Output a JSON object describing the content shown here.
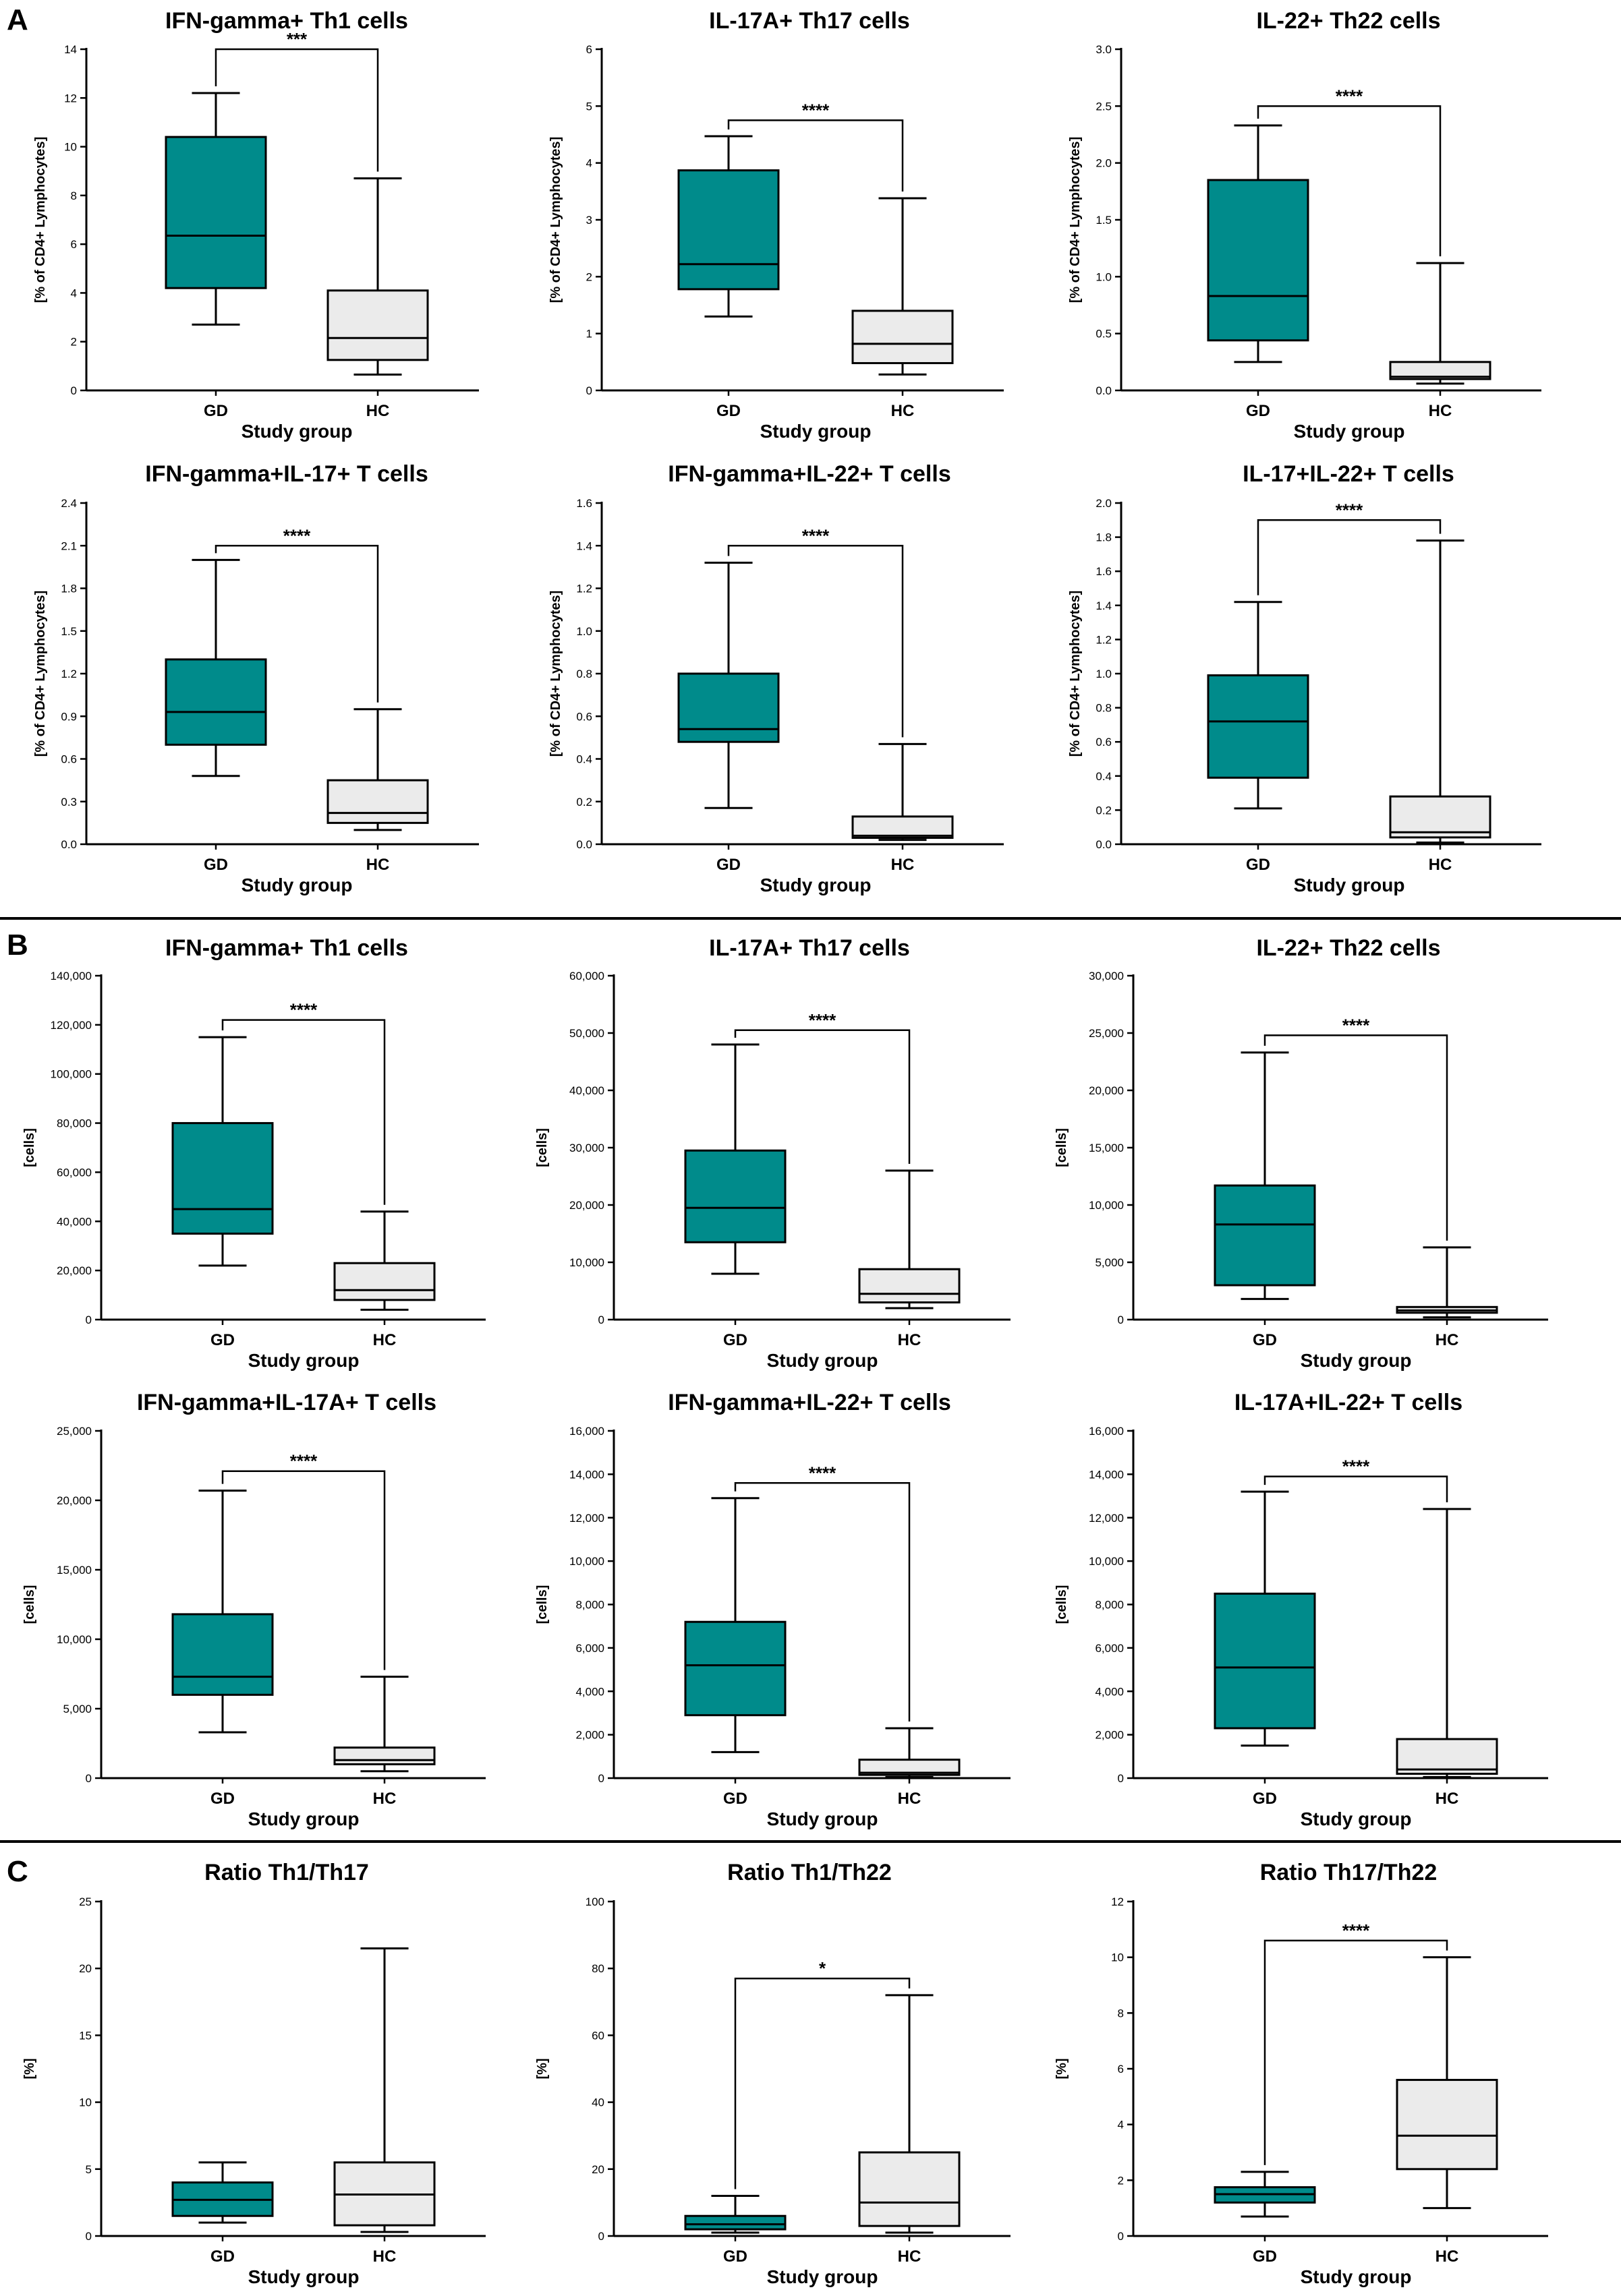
{
  "figure": {
    "panels": [
      "A",
      "B",
      "C"
    ],
    "colors": {
      "gd_fill": "#008b8b",
      "hc_fill": "#ebebeb",
      "stroke": "#000000"
    }
  },
  "chart_data": [
    {
      "type": "box",
      "section": "A",
      "title": "IFN-gamma+ Th1 cells",
      "xlabel": "Study group",
      "ylabel": "[% of CD4+ Lymphocytes]",
      "categories": [
        "GD",
        "HC"
      ],
      "ylim": [
        0,
        14
      ],
      "ticks": [
        0,
        2,
        4,
        6,
        8,
        10,
        12,
        14
      ],
      "tick_labels": [
        "0",
        "2",
        "4",
        "6",
        "8",
        "10",
        "12",
        "14"
      ],
      "boxes": [
        {
          "min": 2.7,
          "q1": 4.2,
          "median": 6.35,
          "q3": 10.4,
          "max": 12.2
        },
        {
          "min": 0.65,
          "q1": 1.25,
          "median": 2.15,
          "q3": 4.1,
          "max": 8.7
        }
      ],
      "significance": "***",
      "bracket_y": 14.0
    },
    {
      "type": "box",
      "section": "A",
      "title": "IL-17A+ Th17 cells",
      "xlabel": "Study group",
      "ylabel": "[% of CD4+ Lymphocytes]",
      "categories": [
        "GD",
        "HC"
      ],
      "ylim": [
        0,
        6
      ],
      "ticks": [
        0,
        1,
        2,
        3,
        4,
        5,
        6
      ],
      "tick_labels": [
        "0",
        "1",
        "2",
        "3",
        "4",
        "5",
        "6"
      ],
      "boxes": [
        {
          "min": 1.3,
          "q1": 1.78,
          "median": 2.22,
          "q3": 3.87,
          "max": 4.47
        },
        {
          "min": 0.28,
          "q1": 0.48,
          "median": 0.82,
          "q3": 1.4,
          "max": 3.38
        }
      ],
      "significance": "****",
      "bracket_y": 4.75
    },
    {
      "type": "box",
      "section": "A",
      "title": "IL-22+ Th22 cells",
      "xlabel": "Study group",
      "ylabel": "[% of CD4+ Lymphocytes]",
      "categories": [
        "GD",
        "HC"
      ],
      "ylim": [
        0,
        3
      ],
      "ticks": [
        0,
        0.5,
        1,
        1.5,
        2,
        2.5,
        3
      ],
      "tick_labels": [
        "0.0",
        "0.5",
        "1.0",
        "1.5",
        "2.0",
        "2.5",
        "3.0"
      ],
      "boxes": [
        {
          "min": 0.25,
          "q1": 0.44,
          "median": 0.83,
          "q3": 1.85,
          "max": 2.33
        },
        {
          "min": 0.06,
          "q1": 0.1,
          "median": 0.12,
          "q3": 0.25,
          "max": 1.12
        }
      ],
      "significance": "****",
      "bracket_y": 2.5
    },
    {
      "type": "box",
      "section": "A",
      "title": "IFN-gamma+IL-17+ T cells",
      "xlabel": "Study group",
      "ylabel": "[% of CD4+ Lymphocytes]",
      "categories": [
        "GD",
        "HC"
      ],
      "ylim": [
        0,
        2.4
      ],
      "ticks": [
        0,
        0.3,
        0.6,
        0.9,
        1.2,
        1.5,
        1.8,
        2.1,
        2.4
      ],
      "tick_labels": [
        "0.0",
        "0.3",
        "0.6",
        "0.9",
        "1.2",
        "1.5",
        "1.8",
        "2.1",
        "2.4"
      ],
      "boxes": [
        {
          "min": 0.48,
          "q1": 0.7,
          "median": 0.93,
          "q3": 1.3,
          "max": 2.0
        },
        {
          "min": 0.1,
          "q1": 0.15,
          "median": 0.22,
          "q3": 0.45,
          "max": 0.95
        }
      ],
      "significance": "****",
      "bracket_y": 2.1
    },
    {
      "type": "box",
      "section": "A",
      "title": "IFN-gamma+IL-22+ T cells",
      "xlabel": "Study group",
      "ylabel": "[% of CD4+ Lymphocytes]",
      "categories": [
        "GD",
        "HC"
      ],
      "ylim": [
        0,
        1.6
      ],
      "ticks": [
        0,
        0.2,
        0.4,
        0.6,
        0.8,
        1.0,
        1.2,
        1.4,
        1.6
      ],
      "tick_labels": [
        "0.0",
        "0.2",
        "0.4",
        "0.6",
        "0.8",
        "1.0",
        "1.2",
        "1.4",
        "1.6"
      ],
      "boxes": [
        {
          "min": 0.17,
          "q1": 0.48,
          "median": 0.54,
          "q3": 0.8,
          "max": 1.32
        },
        {
          "min": 0.02,
          "q1": 0.03,
          "median": 0.04,
          "q3": 0.13,
          "max": 0.47
        }
      ],
      "significance": "****",
      "bracket_y": 1.4
    },
    {
      "type": "box",
      "section": "A",
      "title": "IL-17+IL-22+ T cells",
      "xlabel": "Study group",
      "ylabel": "[% of CD4+ Lymphocytes]",
      "categories": [
        "GD",
        "HC"
      ],
      "ylim": [
        0,
        2.0
      ],
      "ticks": [
        0,
        0.2,
        0.4,
        0.6,
        0.8,
        1.0,
        1.2,
        1.4,
        1.6,
        1.8,
        2.0
      ],
      "tick_labels": [
        "0.0",
        "0.2",
        "0.4",
        "0.6",
        "0.8",
        "1.0",
        "1.2",
        "1.4",
        "1.6",
        "1.8",
        "2.0"
      ],
      "boxes": [
        {
          "min": 0.21,
          "q1": 0.39,
          "median": 0.72,
          "q3": 0.99,
          "max": 1.42
        },
        {
          "min": 0.01,
          "q1": 0.04,
          "median": 0.07,
          "q3": 0.28,
          "max": 1.78
        }
      ],
      "significance": "****",
      "bracket_y": 1.9
    },
    {
      "type": "box",
      "section": "B",
      "title": "IFN-gamma+ Th1 cells",
      "xlabel": "Study group",
      "ylabel": "[cells]",
      "categories": [
        "GD",
        "HC"
      ],
      "ylim": [
        0,
        140000
      ],
      "ticks": [
        0,
        20000,
        40000,
        60000,
        80000,
        100000,
        120000,
        140000
      ],
      "tick_labels": [
        "0",
        "20,000",
        "40,000",
        "60,000",
        "80,000",
        "100,000",
        "120,000",
        "140,000"
      ],
      "boxes": [
        {
          "min": 22000,
          "q1": 35000,
          "median": 45000,
          "q3": 80000,
          "max": 115000
        },
        {
          "min": 4000,
          "q1": 8000,
          "median": 12000,
          "q3": 23000,
          "max": 44000
        }
      ],
      "significance": "****",
      "bracket_y": 122000
    },
    {
      "type": "box",
      "section": "B",
      "title": "IL-17A+ Th17 cells",
      "xlabel": "Study group",
      "ylabel": "[cells]",
      "categories": [
        "GD",
        "HC"
      ],
      "ylim": [
        0,
        60000
      ],
      "ticks": [
        0,
        10000,
        20000,
        30000,
        40000,
        50000,
        60000
      ],
      "tick_labels": [
        "0",
        "10,000",
        "20,000",
        "30,000",
        "40,000",
        "50,000",
        "60,000"
      ],
      "boxes": [
        {
          "min": 8000,
          "q1": 13500,
          "median": 19500,
          "q3": 29500,
          "max": 48000
        },
        {
          "min": 2000,
          "q1": 3000,
          "median": 4500,
          "q3": 8800,
          "max": 26000
        }
      ],
      "significance": "****",
      "bracket_y": 50500
    },
    {
      "type": "box",
      "section": "B",
      "title": "IL-22+ Th22 cells",
      "xlabel": "Study group",
      "ylabel": "[cells]",
      "categories": [
        "GD",
        "HC"
      ],
      "ylim": [
        0,
        30000
      ],
      "ticks": [
        0,
        5000,
        10000,
        15000,
        20000,
        25000,
        30000
      ],
      "tick_labels": [
        "0",
        "5,000",
        "10,000",
        "15,000",
        "20,000",
        "25,000",
        "30,000"
      ],
      "boxes": [
        {
          "min": 1800,
          "q1": 3000,
          "median": 8300,
          "q3": 11700,
          "max": 23300
        },
        {
          "min": 200,
          "q1": 600,
          "median": 800,
          "q3": 1100,
          "max": 6300
        }
      ],
      "significance": "****",
      "bracket_y": 24800
    },
    {
      "type": "box",
      "section": "B",
      "title": "IFN-gamma+IL-17A+ T cells",
      "xlabel": "Study group",
      "ylabel": "[cells]",
      "categories": [
        "GD",
        "HC"
      ],
      "ylim": [
        0,
        25000
      ],
      "ticks": [
        0,
        5000,
        10000,
        15000,
        20000,
        25000
      ],
      "tick_labels": [
        "0",
        "5,000",
        "10,000",
        "15,000",
        "20,000",
        "25,000"
      ],
      "boxes": [
        {
          "min": 3300,
          "q1": 6000,
          "median": 7300,
          "q3": 11800,
          "max": 20700
        },
        {
          "min": 500,
          "q1": 1000,
          "median": 1300,
          "q3": 2200,
          "max": 7300
        }
      ],
      "significance": "****",
      "bracket_y": 22100
    },
    {
      "type": "box",
      "section": "B",
      "title": "IFN-gamma+IL-22+ T cells",
      "xlabel": "Study group",
      "ylabel": "[cells]",
      "categories": [
        "GD",
        "HC"
      ],
      "ylim": [
        0,
        16000
      ],
      "ticks": [
        0,
        2000,
        4000,
        6000,
        8000,
        10000,
        12000,
        14000,
        16000
      ],
      "tick_labels": [
        "0",
        "2,000",
        "4,000",
        "6,000",
        "8,000",
        "10,000",
        "12,000",
        "14,000",
        "16,000"
      ],
      "boxes": [
        {
          "min": 1200,
          "q1": 2900,
          "median": 5200,
          "q3": 7200,
          "max": 12900
        },
        {
          "min": 50,
          "q1": 150,
          "median": 250,
          "q3": 850,
          "max": 2300
        }
      ],
      "significance": "****",
      "bracket_y": 13600
    },
    {
      "type": "box",
      "section": "B",
      "title": "IL-17A+IL-22+ T cells",
      "xlabel": "Study group",
      "ylabel": "[cells]",
      "categories": [
        "GD",
        "HC"
      ],
      "ylim": [
        0,
        16000
      ],
      "ticks": [
        0,
        2000,
        4000,
        6000,
        8000,
        10000,
        12000,
        14000,
        16000
      ],
      "tick_labels": [
        "0",
        "2,000",
        "4,000",
        "6,000",
        "8,000",
        "10,000",
        "12,000",
        "14,000",
        "16,000"
      ],
      "boxes": [
        {
          "min": 1500,
          "q1": 2300,
          "median": 5100,
          "q3": 8500,
          "max": 13200
        },
        {
          "min": 50,
          "q1": 200,
          "median": 400,
          "q3": 1800,
          "max": 12400
        }
      ],
      "significance": "****",
      "bracket_y": 13900
    },
    {
      "type": "box",
      "section": "C",
      "title": "Ratio Th1/Th17",
      "xlabel": "Study group",
      "ylabel": "[%]",
      "categories": [
        "GD",
        "HC"
      ],
      "ylim": [
        0,
        25
      ],
      "ticks": [
        0,
        5,
        10,
        15,
        20,
        25
      ],
      "tick_labels": [
        "0",
        "5",
        "10",
        "15",
        "20",
        "25"
      ],
      "boxes": [
        {
          "min": 1.0,
          "q1": 1.5,
          "median": 2.7,
          "q3": 4.0,
          "max": 5.5
        },
        {
          "min": 0.3,
          "q1": 0.8,
          "median": 3.1,
          "q3": 5.5,
          "max": 21.5
        }
      ],
      "significance": "",
      "bracket_y": null
    },
    {
      "type": "box",
      "section": "C",
      "title": "Ratio Th1/Th22",
      "xlabel": "Study group",
      "ylabel": "[%]",
      "categories": [
        "GD",
        "HC"
      ],
      "ylim": [
        0,
        100
      ],
      "ticks": [
        0,
        20,
        40,
        60,
        80,
        100
      ],
      "tick_labels": [
        "0",
        "20",
        "40",
        "60",
        "80",
        "100"
      ],
      "boxes": [
        {
          "min": 1,
          "q1": 2,
          "median": 3.5,
          "q3": 6,
          "max": 12
        },
        {
          "min": 1,
          "q1": 3,
          "median": 10,
          "q3": 25,
          "max": 72
        }
      ],
      "significance": "*",
      "bracket_y": 77
    },
    {
      "type": "box",
      "section": "C",
      "title": "Ratio Th17/Th22",
      "xlabel": "Study group",
      "ylabel": "[%]",
      "categories": [
        "GD",
        "HC"
      ],
      "ylim": [
        0,
        12
      ],
      "ticks": [
        0,
        2,
        4,
        6,
        8,
        10,
        12
      ],
      "tick_labels": [
        "0",
        "2",
        "4",
        "6",
        "8",
        "10",
        "12"
      ],
      "boxes": [
        {
          "min": 0.7,
          "q1": 1.2,
          "median": 1.5,
          "q3": 1.75,
          "max": 2.3
        },
        {
          "min": 1.0,
          "q1": 2.4,
          "median": 3.6,
          "q3": 5.6,
          "max": 10.0
        }
      ],
      "significance": "****",
      "bracket_y": 10.6
    }
  ]
}
